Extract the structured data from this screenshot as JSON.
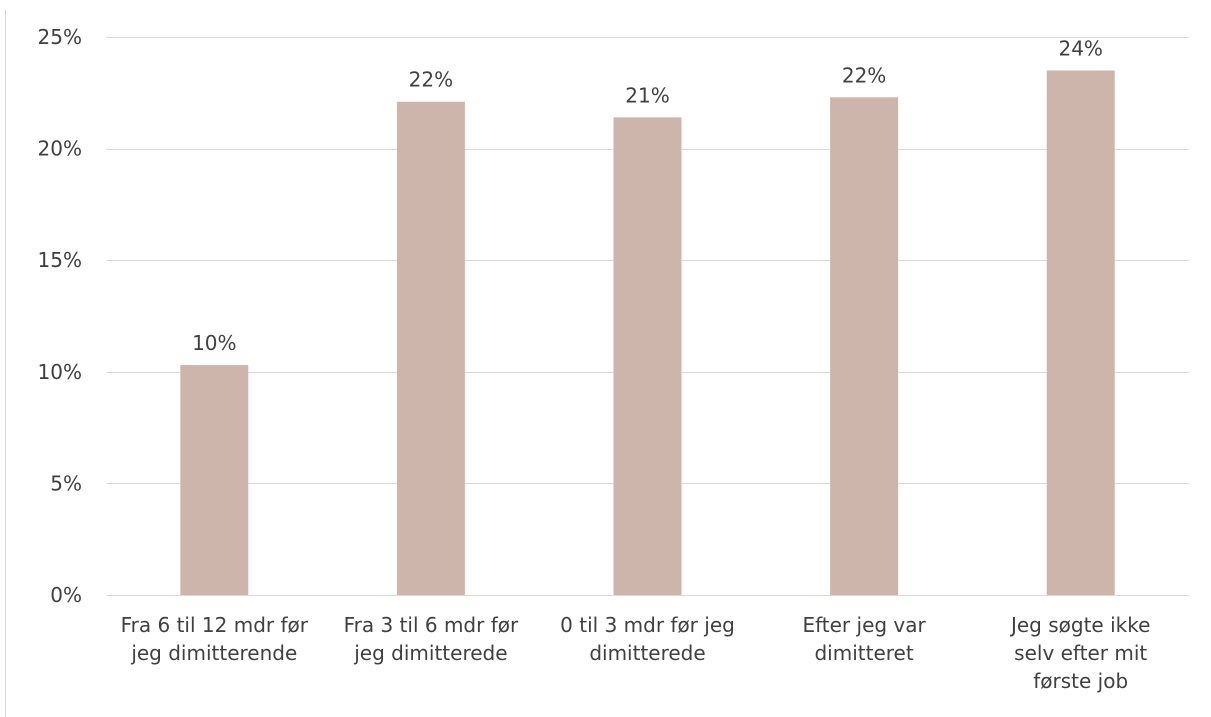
{
  "chart_data": {
    "type": "bar",
    "title": "",
    "xlabel": "",
    "ylabel": "",
    "ylim": [
      0,
      25
    ],
    "yticks": [
      "0%",
      "5%",
      "10%",
      "15%",
      "20%",
      "25%"
    ],
    "ytick_values": [
      0,
      5,
      10,
      15,
      20,
      25
    ],
    "grid": true,
    "legend": "none",
    "bar_color": "#cdb5ab",
    "categories": [
      [
        "Fra 6 til 12 mdr før",
        "jeg dimitterende"
      ],
      [
        "Fra 3 til 6 mdr før",
        "jeg dimitterede"
      ],
      [
        "0 til 3 mdr før jeg",
        "dimitterede"
      ],
      [
        "Efter jeg var",
        "dimitteret"
      ],
      [
        "Jeg søgte ikke",
        "selv efter mit",
        "første job"
      ]
    ],
    "values": [
      10.3,
      22.1,
      21.4,
      22.3,
      23.5
    ],
    "data_labels": [
      "10%",
      "22%",
      "21%",
      "22%",
      "24%"
    ]
  }
}
